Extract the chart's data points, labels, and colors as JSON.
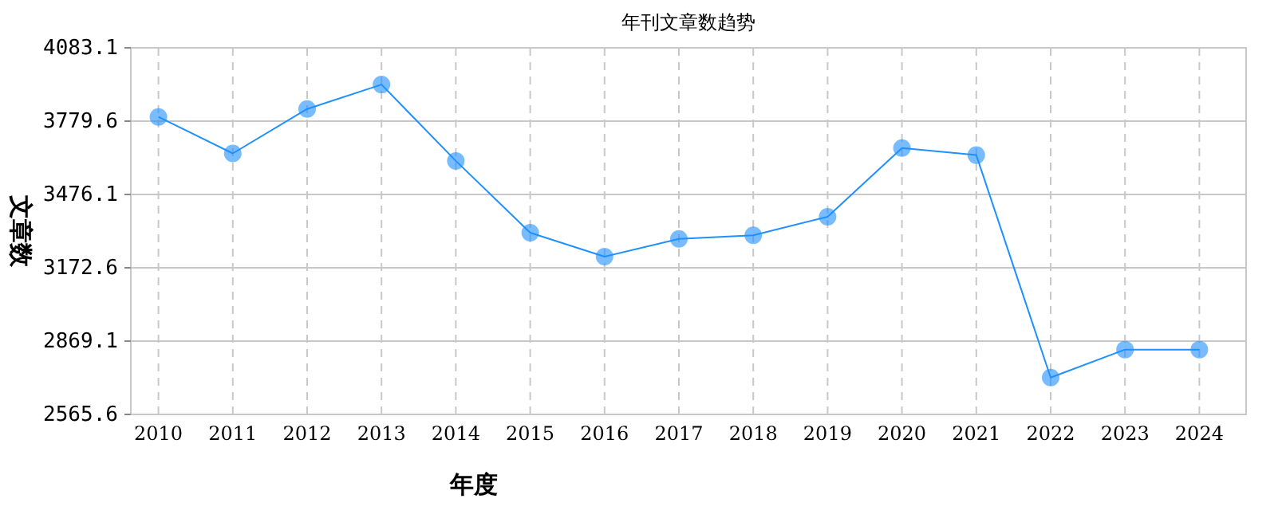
{
  "chart_data": {
    "type": "line",
    "title": "年刊文章数趋势",
    "xlabel": "年度",
    "ylabel": "文章数",
    "categories": [
      "2010",
      "2011",
      "2012",
      "2013",
      "2014",
      "2015",
      "2016",
      "2017",
      "2018",
      "2019",
      "2020",
      "2021",
      "2022",
      "2023",
      "2024"
    ],
    "series": [
      {
        "color": "#1e90ff",
        "values": [
          3797,
          3646,
          3830,
          3931,
          3615,
          3318,
          3219,
          3292,
          3307,
          3384,
          3668,
          3639,
          2718,
          2834,
          2834
        ]
      }
    ],
    "ylim": [
      2565.6,
      4083.1
    ],
    "yticks": [
      2565.6,
      2869.1,
      3172.6,
      3476.1,
      3779.6,
      4083.1
    ],
    "grid": true,
    "marker": "circle",
    "line_style": "solid"
  }
}
